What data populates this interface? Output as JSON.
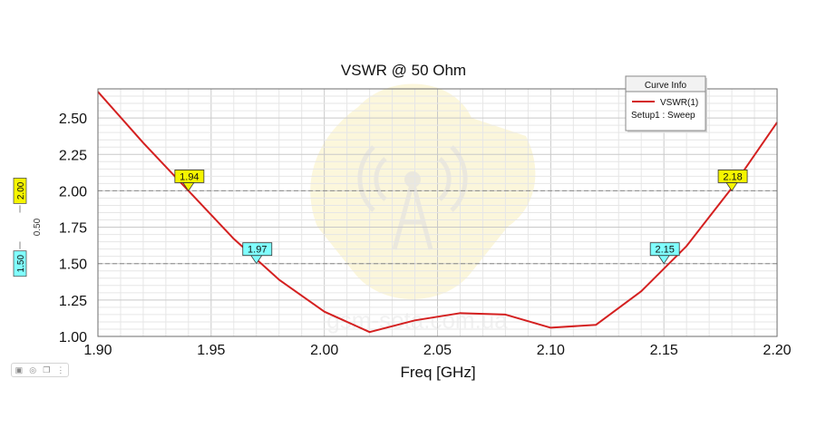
{
  "chart_data": {
    "type": "line",
    "title": "VSWR @ 50 Ohm",
    "xlabel": "Freq [GHz]",
    "ylabel": "",
    "xlim": [
      1.9,
      2.2
    ],
    "ylim": [
      1.0,
      2.7
    ],
    "grid": true,
    "x_ticks": [
      1.9,
      1.95,
      2.0,
      2.05,
      2.1,
      2.15,
      2.2
    ],
    "x_tick_labels": [
      "1.90",
      "1.95",
      "2.00",
      "2.05",
      "2.10",
      "2.15",
      "2.20"
    ],
    "y_ticks": [
      1.0,
      1.25,
      1.5,
      1.75,
      2.0,
      2.25,
      2.5
    ],
    "y_tick_labels": [
      "1.00",
      "1.25",
      "1.50",
      "1.75",
      "2.00",
      "2.25",
      "2.50"
    ],
    "series": [
      {
        "name": "VSWR(1)",
        "color": "#d42020",
        "x": [
          1.9,
          1.92,
          1.94,
          1.96,
          1.98,
          2.0,
          2.02,
          2.04,
          2.06,
          2.08,
          2.1,
          2.12,
          2.14,
          2.16,
          2.18,
          2.2
        ],
        "y": [
          2.68,
          2.33,
          2.0,
          1.67,
          1.39,
          1.17,
          1.03,
          1.11,
          1.16,
          1.15,
          1.06,
          1.08,
          1.31,
          1.62,
          2.02,
          2.47
        ]
      }
    ],
    "reference_lines": [
      {
        "y": 2.0,
        "label": "2.00",
        "color": "#f5f500"
      },
      {
        "y": 1.5,
        "label": "1.50",
        "color": "#80ffff"
      }
    ],
    "delta_label": "0.50",
    "markers": [
      {
        "x": 1.94,
        "y": 2.0,
        "label": "1.94",
        "color": "#f5f500"
      },
      {
        "x": 1.97,
        "y": 1.5,
        "label": "1.97",
        "color": "#80ffff"
      },
      {
        "x": 2.15,
        "y": 1.5,
        "label": "2.15",
        "color": "#80ffff"
      },
      {
        "x": 2.18,
        "y": 2.0,
        "label": "2.18",
        "color": "#f5f500"
      }
    ],
    "legend": {
      "title": "Curve Info",
      "entries": [
        "VSWR(1)"
      ],
      "subtitle": "Setup1 : Sweep",
      "placement": "top-right"
    },
    "watermark": "gsm-sota.com.ua"
  },
  "toolbar": {
    "icons": [
      "image-icon",
      "camera-icon",
      "copy-icon",
      "more-icon"
    ]
  }
}
